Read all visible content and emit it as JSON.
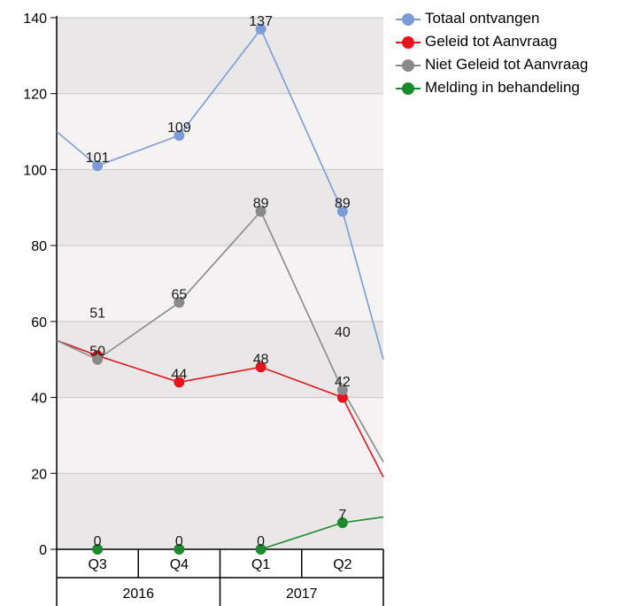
{
  "chart_data": {
    "type": "line",
    "categories": [
      "Q3",
      "Q4",
      "Q1",
      "Q2"
    ],
    "year_groups": [
      {
        "label": "2016",
        "span": 2
      },
      {
        "label": "2017",
        "span": 2
      }
    ],
    "ylim": [
      0,
      140
    ],
    "yticks": [
      0,
      20,
      40,
      60,
      80,
      100,
      120,
      140
    ],
    "grid": true,
    "legend_position": "right",
    "series": [
      {
        "name": "Totaal ontvangen",
        "color": "#7b9bd9",
        "values": [
          101,
          109,
          137,
          89
        ],
        "labels": [
          "101",
          "109",
          "137",
          "89"
        ],
        "lead_in": 110,
        "lead_out": 50
      },
      {
        "name": "Geleid tot Aanvraag",
        "color": "#e8141c",
        "values": [
          51,
          44,
          48,
          40
        ],
        "labels": [
          "",
          "44",
          "48",
          ""
        ],
        "lead_in": 55,
        "lead_out": 19
      },
      {
        "name": "Niet Geleid tot Aanvraag",
        "color": "#8a8a8a",
        "values": [
          50,
          65,
          89,
          42
        ],
        "labels": [
          "50",
          "65",
          "89",
          "42"
        ],
        "lead_in": 55,
        "lead_out": 23
      },
      {
        "name": "Melding in behandeling",
        "color": "#1a8a2a",
        "values": [
          0,
          0,
          0,
          7
        ],
        "labels": [
          "0",
          "0",
          "0",
          "7"
        ],
        "lead_in": null,
        "lead_out": 8.5,
        "draw_from": 2
      }
    ],
    "floating_labels": [
      {
        "text": "51",
        "category_index": 0,
        "y": 61
      },
      {
        "text": "40",
        "category_index": 3,
        "y": 56
      }
    ]
  }
}
